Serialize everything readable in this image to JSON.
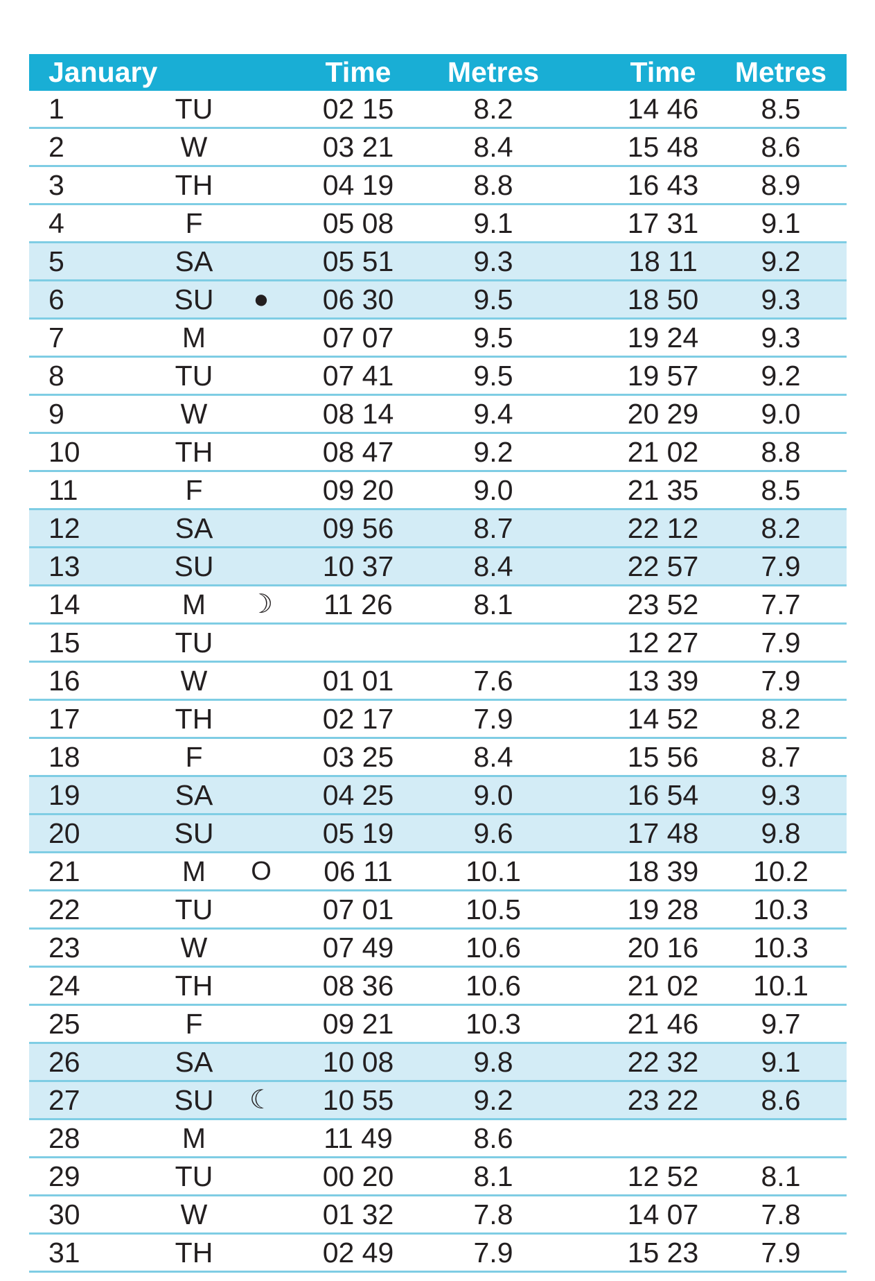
{
  "header": {
    "month": "January",
    "time1": "Time",
    "metres1": "Metres",
    "time2": "Time",
    "metres2": "Metres"
  },
  "colors": {
    "header_bg": "#19aed5",
    "weekend_bg": "#d3ecf6",
    "rule": "#7fcde4"
  },
  "rows": [
    {
      "day": "1",
      "weekday": "TU",
      "moon": "",
      "time1": "02 15",
      "height1": "8.2",
      "time2": "14 46",
      "height2": "8.5",
      "weekend": false
    },
    {
      "day": "2",
      "weekday": "W",
      "moon": "",
      "time1": "03 21",
      "height1": "8.4",
      "time2": "15 48",
      "height2": "8.6",
      "weekend": false
    },
    {
      "day": "3",
      "weekday": "TH",
      "moon": "",
      "time1": "04 19",
      "height1": "8.8",
      "time2": "16 43",
      "height2": "8.9",
      "weekend": false
    },
    {
      "day": "4",
      "weekday": "F",
      "moon": "",
      "time1": "05 08",
      "height1": "9.1",
      "time2": "17 31",
      "height2": "9.1",
      "weekend": false
    },
    {
      "day": "5",
      "weekday": "SA",
      "moon": "",
      "time1": "05 51",
      "height1": "9.3",
      "time2": "18 11",
      "height2": "9.2",
      "weekend": true
    },
    {
      "day": "6",
      "weekday": "SU",
      "moon": "●",
      "time1": "06 30",
      "height1": "9.5",
      "time2": "18 50",
      "height2": "9.3",
      "weekend": true
    },
    {
      "day": "7",
      "weekday": "M",
      "moon": "",
      "time1": "07 07",
      "height1": "9.5",
      "time2": "19 24",
      "height2": "9.3",
      "weekend": false
    },
    {
      "day": "8",
      "weekday": "TU",
      "moon": "",
      "time1": "07 41",
      "height1": "9.5",
      "time2": "19 57",
      "height2": "9.2",
      "weekend": false
    },
    {
      "day": "9",
      "weekday": "W",
      "moon": "",
      "time1": "08 14",
      "height1": "9.4",
      "time2": "20 29",
      "height2": "9.0",
      "weekend": false
    },
    {
      "day": "10",
      "weekday": "TH",
      "moon": "",
      "time1": "08 47",
      "height1": "9.2",
      "time2": "21 02",
      "height2": "8.8",
      "weekend": false
    },
    {
      "day": "11",
      "weekday": "F",
      "moon": "",
      "time1": "09 20",
      "height1": "9.0",
      "time2": "21 35",
      "height2": "8.5",
      "weekend": false
    },
    {
      "day": "12",
      "weekday": "SA",
      "moon": "",
      "time1": "09 56",
      "height1": "8.7",
      "time2": "22 12",
      "height2": "8.2",
      "weekend": true
    },
    {
      "day": "13",
      "weekday": "SU",
      "moon": "",
      "time1": "10 37",
      "height1": "8.4",
      "time2": "22 57",
      "height2": "7.9",
      "weekend": true
    },
    {
      "day": "14",
      "weekday": "M",
      "moon": "☽",
      "time1": "11 26",
      "height1": "8.1",
      "time2": "23 52",
      "height2": "7.7",
      "weekend": false
    },
    {
      "day": "15",
      "weekday": "TU",
      "moon": "",
      "time1": "",
      "height1": "",
      "time2": "12 27",
      "height2": "7.9",
      "weekend": false
    },
    {
      "day": "16",
      "weekday": "W",
      "moon": "",
      "time1": "01 01",
      "height1": "7.6",
      "time2": "13 39",
      "height2": "7.9",
      "weekend": false
    },
    {
      "day": "17",
      "weekday": "TH",
      "moon": "",
      "time1": "02 17",
      "height1": "7.9",
      "time2": "14 52",
      "height2": "8.2",
      "weekend": false
    },
    {
      "day": "18",
      "weekday": "F",
      "moon": "",
      "time1": "03 25",
      "height1": "8.4",
      "time2": "15 56",
      "height2": "8.7",
      "weekend": false
    },
    {
      "day": "19",
      "weekday": "SA",
      "moon": "",
      "time1": "04 25",
      "height1": "9.0",
      "time2": "16 54",
      "height2": "9.3",
      "weekend": true
    },
    {
      "day": "20",
      "weekday": "SU",
      "moon": "",
      "time1": "05 19",
      "height1": "9.6",
      "time2": "17 48",
      "height2": "9.8",
      "weekend": true
    },
    {
      "day": "21",
      "weekday": "M",
      "moon": "O",
      "time1": "06 11",
      "height1": "10.1",
      "time2": "18 39",
      "height2": "10.2",
      "weekend": false
    },
    {
      "day": "22",
      "weekday": "TU",
      "moon": "",
      "time1": "07 01",
      "height1": "10.5",
      "time2": "19 28",
      "height2": "10.3",
      "weekend": false
    },
    {
      "day": "23",
      "weekday": "W",
      "moon": "",
      "time1": "07 49",
      "height1": "10.6",
      "time2": "20 16",
      "height2": "10.3",
      "weekend": false
    },
    {
      "day": "24",
      "weekday": "TH",
      "moon": "",
      "time1": "08 36",
      "height1": "10.6",
      "time2": "21 02",
      "height2": "10.1",
      "weekend": false
    },
    {
      "day": "25",
      "weekday": "F",
      "moon": "",
      "time1": "09 21",
      "height1": "10.3",
      "time2": "21 46",
      "height2": "9.7",
      "weekend": false
    },
    {
      "day": "26",
      "weekday": "SA",
      "moon": "",
      "time1": "10 08",
      "height1": "9.8",
      "time2": "22 32",
      "height2": "9.1",
      "weekend": true
    },
    {
      "day": "27",
      "weekday": "SU",
      "moon": "☾",
      "time1": "10 55",
      "height1": "9.2",
      "time2": "23 22",
      "height2": "8.6",
      "weekend": true
    },
    {
      "day": "28",
      "weekday": "M",
      "moon": "",
      "time1": "11 49",
      "height1": "8.6",
      "time2": "",
      "height2": "",
      "weekend": false
    },
    {
      "day": "29",
      "weekday": "TU",
      "moon": "",
      "time1": "00 20",
      "height1": "8.1",
      "time2": "12 52",
      "height2": "8.1",
      "weekend": false
    },
    {
      "day": "30",
      "weekday": "W",
      "moon": "",
      "time1": "01 32",
      "height1": "7.8",
      "time2": "14 07",
      "height2": "7.8",
      "weekend": false
    },
    {
      "day": "31",
      "weekday": "TH",
      "moon": "",
      "time1": "02 49",
      "height1": "7.9",
      "time2": "15 23",
      "height2": "7.9",
      "weekend": false
    }
  ]
}
